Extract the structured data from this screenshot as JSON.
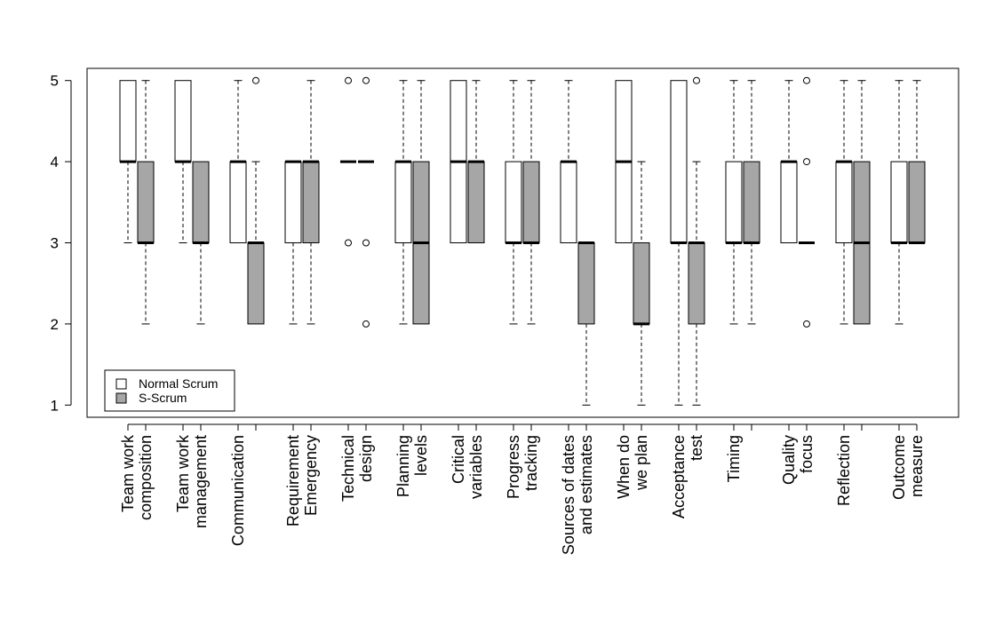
{
  "chart_data": {
    "type": "boxplot",
    "title": "",
    "xlabel": "",
    "ylabel": "",
    "ylim": [
      0.85,
      5.15
    ],
    "yticks": [
      1,
      2,
      3,
      4,
      5
    ],
    "grid": false,
    "legend_position": "bottom-left",
    "series": [
      {
        "name": "Normal Scrum",
        "color": "#ffffff"
      },
      {
        "name": "S-Scrum",
        "color": "#a6a6a6"
      }
    ],
    "categories": [
      {
        "label": [
          "Team work",
          "composition"
        ],
        "boxes": [
          {
            "whisker_low": 3,
            "q1": 4,
            "median": 4,
            "q3": 5,
            "whisker_high": 5,
            "outliers": []
          },
          {
            "whisker_low": 2,
            "q1": 3,
            "median": 3,
            "q3": 4,
            "whisker_high": 5,
            "outliers": []
          }
        ]
      },
      {
        "label": [
          "Team work",
          "management"
        ],
        "boxes": [
          {
            "whisker_low": 3,
            "q1": 4,
            "median": 4,
            "q3": 5,
            "whisker_high": 5,
            "outliers": []
          },
          {
            "whisker_low": 2,
            "q1": 3,
            "median": 3,
            "q3": 4,
            "whisker_high": 4,
            "outliers": []
          }
        ]
      },
      {
        "label": [
          "Communication"
        ],
        "boxes": [
          {
            "whisker_low": 3,
            "q1": 3,
            "median": 4,
            "q3": 4,
            "whisker_high": 5,
            "outliers": []
          },
          {
            "whisker_low": 2,
            "q1": 2,
            "median": 3,
            "q3": 3,
            "whisker_high": 4,
            "outliers": [
              5
            ]
          }
        ]
      },
      {
        "label": [
          "Requirement",
          "Emergency"
        ],
        "boxes": [
          {
            "whisker_low": 2,
            "q1": 3,
            "median": 4,
            "q3": 4,
            "whisker_high": 4,
            "outliers": []
          },
          {
            "whisker_low": 2,
            "q1": 3,
            "median": 4,
            "q3": 4,
            "whisker_high": 5,
            "outliers": []
          }
        ]
      },
      {
        "label": [
          "Technical",
          "design"
        ],
        "boxes": [
          {
            "whisker_low": 4,
            "q1": 4,
            "median": 4,
            "q3": 4,
            "whisker_high": 4,
            "outliers": [
              3,
              5
            ]
          },
          {
            "whisker_low": 4,
            "q1": 4,
            "median": 4,
            "q3": 4,
            "whisker_high": 4,
            "outliers": [
              2,
              3,
              5
            ]
          }
        ]
      },
      {
        "label": [
          "Planning",
          "levels"
        ],
        "boxes": [
          {
            "whisker_low": 2,
            "q1": 3,
            "median": 4,
            "q3": 4,
            "whisker_high": 5,
            "outliers": []
          },
          {
            "whisker_low": 2,
            "q1": 2,
            "median": 3,
            "q3": 4,
            "whisker_high": 5,
            "outliers": []
          }
        ]
      },
      {
        "label": [
          "Critical",
          "variables"
        ],
        "boxes": [
          {
            "whisker_low": 3,
            "q1": 3,
            "median": 4,
            "q3": 5,
            "whisker_high": 5,
            "outliers": []
          },
          {
            "whisker_low": 3,
            "q1": 3,
            "median": 4,
            "q3": 4,
            "whisker_high": 5,
            "outliers": []
          }
        ]
      },
      {
        "label": [
          "Progress",
          "tracking"
        ],
        "boxes": [
          {
            "whisker_low": 2,
            "q1": 3,
            "median": 3,
            "q3": 4,
            "whisker_high": 5,
            "outliers": []
          },
          {
            "whisker_low": 2,
            "q1": 3,
            "median": 3,
            "q3": 4,
            "whisker_high": 5,
            "outliers": []
          }
        ]
      },
      {
        "label": [
          "Sources of dates",
          "and estimates"
        ],
        "boxes": [
          {
            "whisker_low": 3,
            "q1": 3,
            "median": 4,
            "q3": 4,
            "whisker_high": 5,
            "outliers": []
          },
          {
            "whisker_low": 1,
            "q1": 2,
            "median": 3,
            "q3": 3,
            "whisker_high": 3,
            "outliers": []
          }
        ]
      },
      {
        "label": [
          "When do",
          "we plan"
        ],
        "boxes": [
          {
            "whisker_low": 3,
            "q1": 3,
            "median": 4,
            "q3": 5,
            "whisker_high": 5,
            "outliers": []
          },
          {
            "whisker_low": 1,
            "q1": 2,
            "median": 2,
            "q3": 3,
            "whisker_high": 4,
            "outliers": []
          }
        ]
      },
      {
        "label": [
          "Acceptance",
          "test"
        ],
        "boxes": [
          {
            "whisker_low": 1,
            "q1": 3,
            "median": 3,
            "q3": 5,
            "whisker_high": 5,
            "outliers": []
          },
          {
            "whisker_low": 1,
            "q1": 2,
            "median": 3,
            "q3": 3,
            "whisker_high": 4,
            "outliers": [
              5
            ]
          }
        ]
      },
      {
        "label": [
          "Timing"
        ],
        "boxes": [
          {
            "whisker_low": 2,
            "q1": 3,
            "median": 3,
            "q3": 4,
            "whisker_high": 5,
            "outliers": []
          },
          {
            "whisker_low": 2,
            "q1": 3,
            "median": 3,
            "q3": 4,
            "whisker_high": 5,
            "outliers": []
          }
        ]
      },
      {
        "label": [
          "Quality",
          "focus"
        ],
        "boxes": [
          {
            "whisker_low": 3,
            "q1": 3,
            "median": 4,
            "q3": 4,
            "whisker_high": 5,
            "outliers": []
          },
          {
            "whisker_low": 3,
            "q1": 3,
            "median": 3,
            "q3": 3,
            "whisker_high": 3,
            "outliers": [
              2,
              4,
              5
            ]
          }
        ]
      },
      {
        "label": [
          "Reflection"
        ],
        "boxes": [
          {
            "whisker_low": 2,
            "q1": 3,
            "median": 4,
            "q3": 4,
            "whisker_high": 5,
            "outliers": []
          },
          {
            "whisker_low": 2,
            "q1": 2,
            "median": 3,
            "q3": 4,
            "whisker_high": 5,
            "outliers": []
          }
        ]
      },
      {
        "label": [
          "Outcome",
          "measure"
        ],
        "boxes": [
          {
            "whisker_low": 2,
            "q1": 3,
            "median": 3,
            "q3": 4,
            "whisker_high": 5,
            "outliers": []
          },
          {
            "whisker_low": 3,
            "q1": 3,
            "median": 3,
            "q3": 4,
            "whisker_high": 5,
            "outliers": []
          }
        ]
      }
    ]
  }
}
